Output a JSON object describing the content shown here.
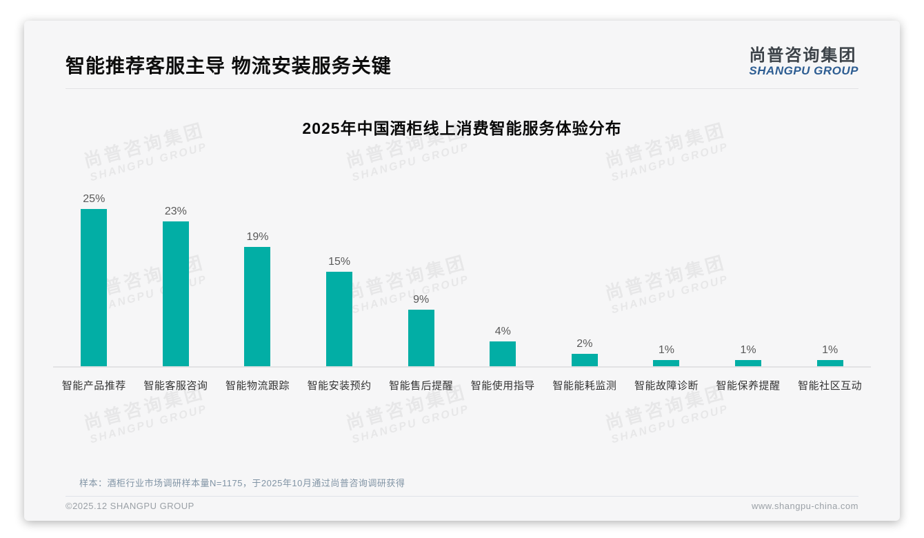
{
  "page": {
    "header_title": "智能推荐客服主导 物流安装服务关键",
    "logo": {
      "cn": "尚普咨询集团",
      "en": "SHANGPU GROUP"
    },
    "watermark": {
      "cn": "尚普咨询集团",
      "en": "SHANGPU GROUP"
    },
    "footnote": "样本：酒柜行业市场调研样本量N=1175，于2025年10月通过尚普咨询调研获得",
    "footer_left": "©2025.12 SHANGPU GROUP",
    "footer_right": "www.shangpu-china.com"
  },
  "chart_data": {
    "type": "bar",
    "title": "2025年中国酒柜线上消费智能服务体验分布",
    "categories": [
      "智能产品推荐",
      "智能客服咨询",
      "智能物流跟踪",
      "智能安装预约",
      "智能售后提醒",
      "智能使用指导",
      "智能能耗监测",
      "智能故障诊断",
      "智能保养提醒",
      "智能社区互动"
    ],
    "values": [
      25,
      23,
      19,
      15,
      9,
      4,
      2,
      1,
      1,
      1
    ],
    "value_labels": [
      "25%",
      "23%",
      "19%",
      "15%",
      "9%",
      "4%",
      "2%",
      "1%",
      "1%",
      "1%"
    ],
    "unit": "%",
    "ylim": [
      0,
      25
    ],
    "grid": false,
    "legend": "none",
    "bar_color": "#02aea5",
    "value_label_color": "#595959",
    "category_label_color": "#333333"
  },
  "colors": {
    "bar": "#02aea5",
    "accent_blue": "#2d5d92",
    "card_background": "#f6f6f7",
    "axis_line": "#e2e2e4"
  }
}
